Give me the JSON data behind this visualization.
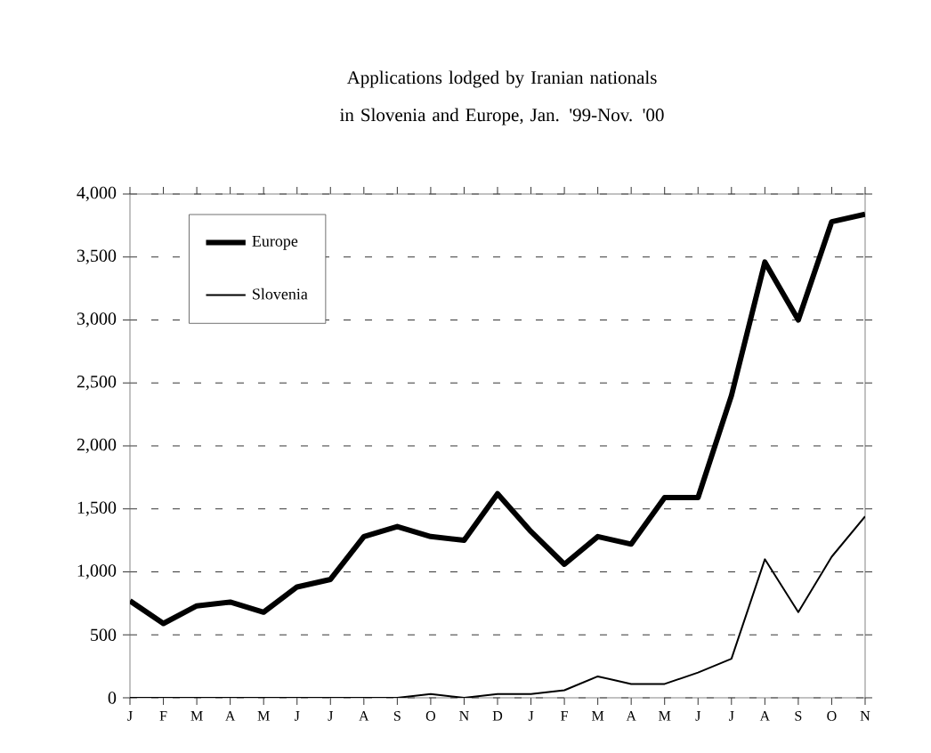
{
  "chart_data": {
    "type": "line",
    "title": "Applications lodged by Iranian nationals in Slovenia and Europe, Jan. '99-Nov. '00",
    "categories": [
      "J",
      "F",
      "M",
      "A",
      "M",
      "J",
      "J",
      "A",
      "S",
      "O",
      "N",
      "D",
      "J",
      "F",
      "M",
      "A",
      "M",
      "J",
      "J",
      "A",
      "S",
      "O",
      "N"
    ],
    "series": [
      {
        "name": "Europe",
        "color": "#000000",
        "values": [
          770,
          590,
          730,
          760,
          680,
          880,
          940,
          1280,
          1360,
          1280,
          1250,
          1620,
          1320,
          1060,
          1280,
          1220,
          1590,
          1590,
          2400,
          3460,
          3000,
          3780,
          3840
        ]
      },
      {
        "name": "Slovenia",
        "color": "#000000",
        "values": [
          0,
          0,
          0,
          0,
          0,
          0,
          0,
          0,
          0,
          30,
          0,
          30,
          30,
          60,
          170,
          110,
          110,
          200,
          310,
          1100,
          680,
          1120,
          1440
        ]
      }
    ],
    "ylim": [
      0,
      4000
    ],
    "yticks": [
      0,
      500,
      {
        "value": 1000,
        "label": "1,000"
      },
      {
        "value": 1500,
        "label": "1,500"
      },
      {
        "value": 2000,
        "label": "2,000"
      },
      {
        "value": 2500,
        "label": "2,500"
      },
      {
        "value": 3000,
        "label": "3,000"
      },
      {
        "value": 3500,
        "label": "3,500"
      },
      {
        "value": 4000,
        "label": "4,000"
      }
    ],
    "grid": "y",
    "legend": "top left",
    "marker": "none",
    "line_style": "solid"
  }
}
